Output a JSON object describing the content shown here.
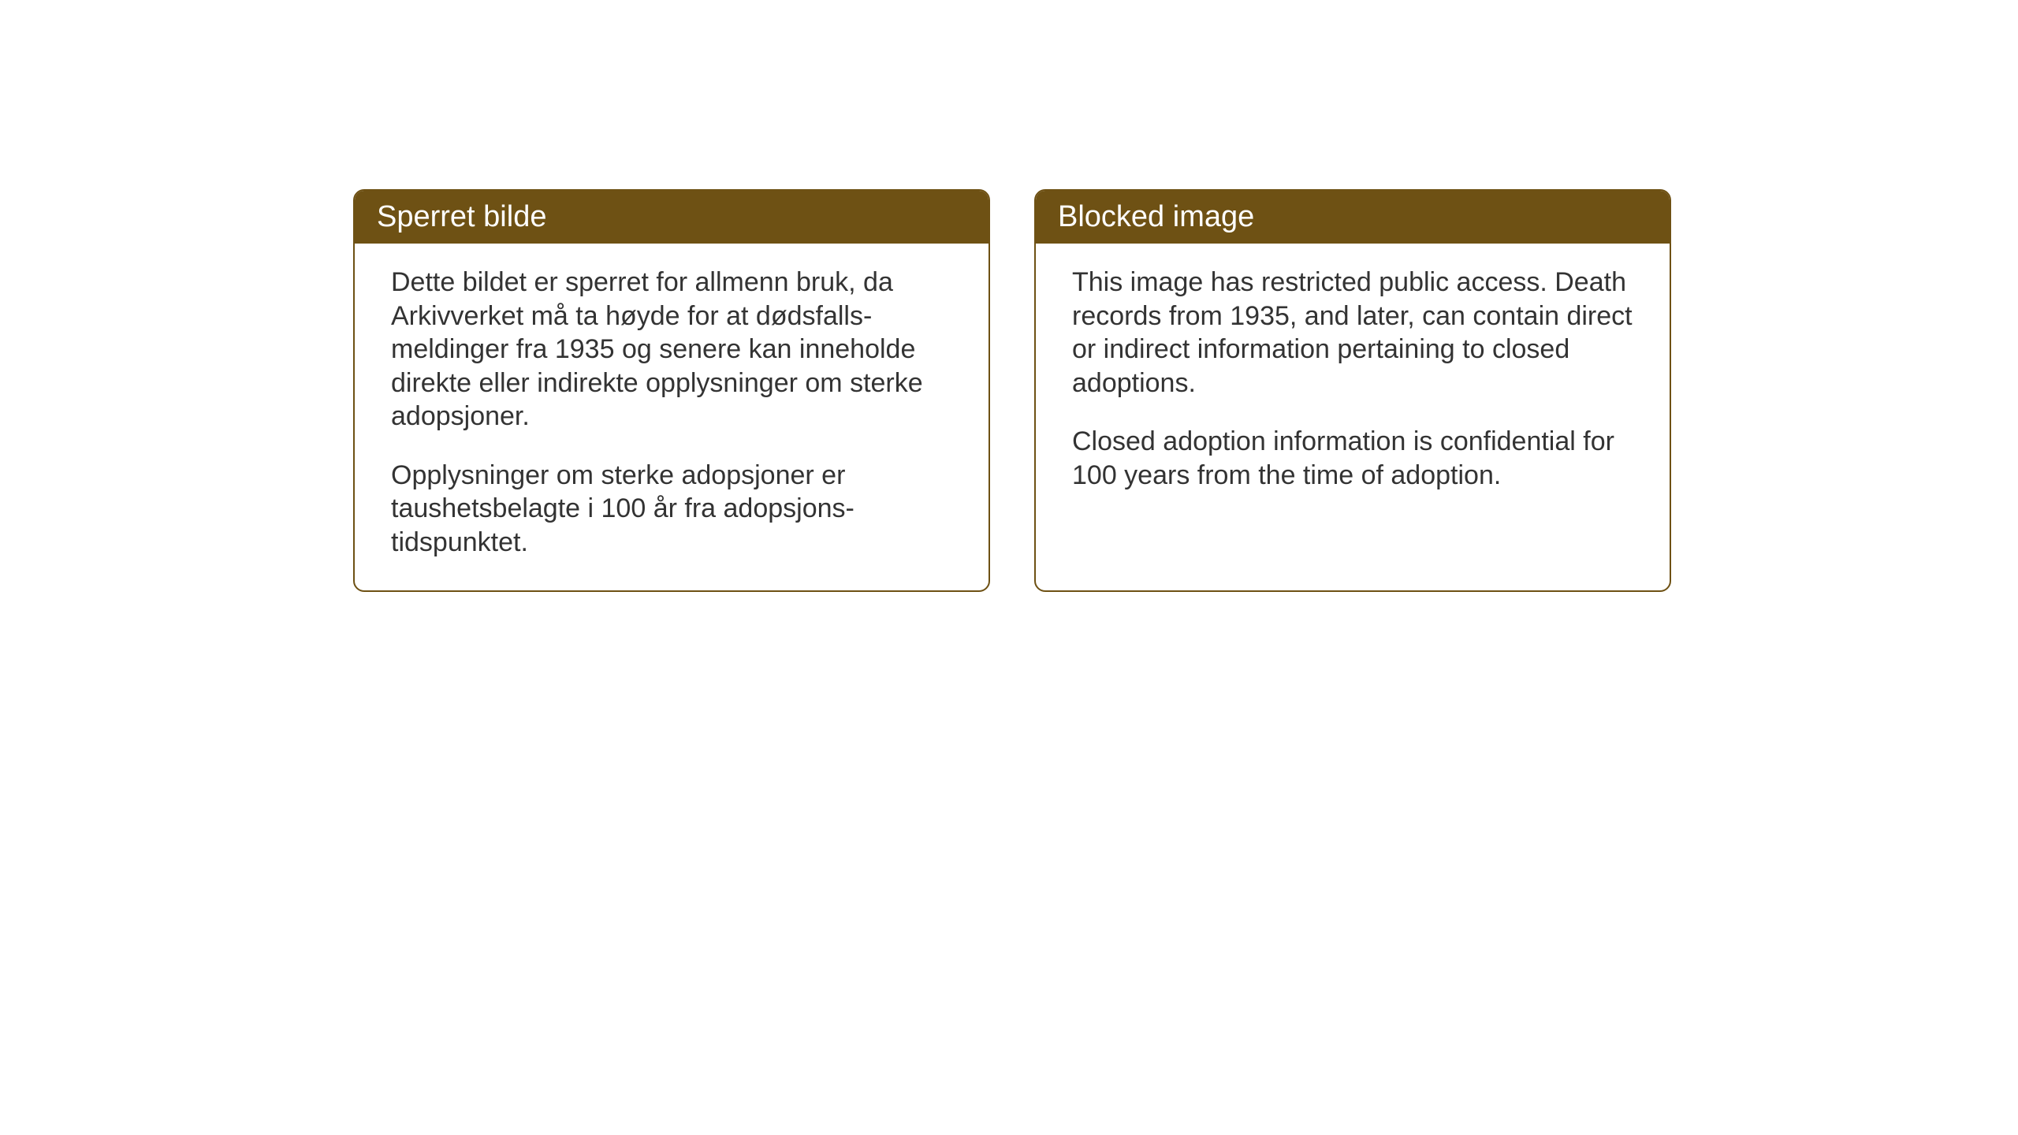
{
  "cards": [
    {
      "title": "Sperret bilde",
      "paragraph1": "Dette bildet er sperret for allmenn bruk, da Arkivverket må ta høyde for at dødsfalls-meldinger fra 1935 og senere kan inneholde direkte eller indirekte opplysninger om sterke adopsjoner.",
      "paragraph2": "Opplysninger om sterke adopsjoner er taushetsbelagte i 100 år fra adopsjons-tidspunktet."
    },
    {
      "title": "Blocked image",
      "paragraph1": "This image has restricted public access. Death records from 1935, and later, can contain direct or indirect information pertaining to closed adoptions.",
      "paragraph2": "Closed adoption information is confidential for 100 years from the time of adoption."
    }
  ],
  "styling": {
    "header_bg_color": "#6e5114",
    "header_text_color": "#ffffff",
    "border_color": "#6e5114",
    "body_text_color": "#333333",
    "background_color": "#ffffff",
    "border_radius": 14,
    "header_fontsize": 38,
    "body_fontsize": 34
  }
}
